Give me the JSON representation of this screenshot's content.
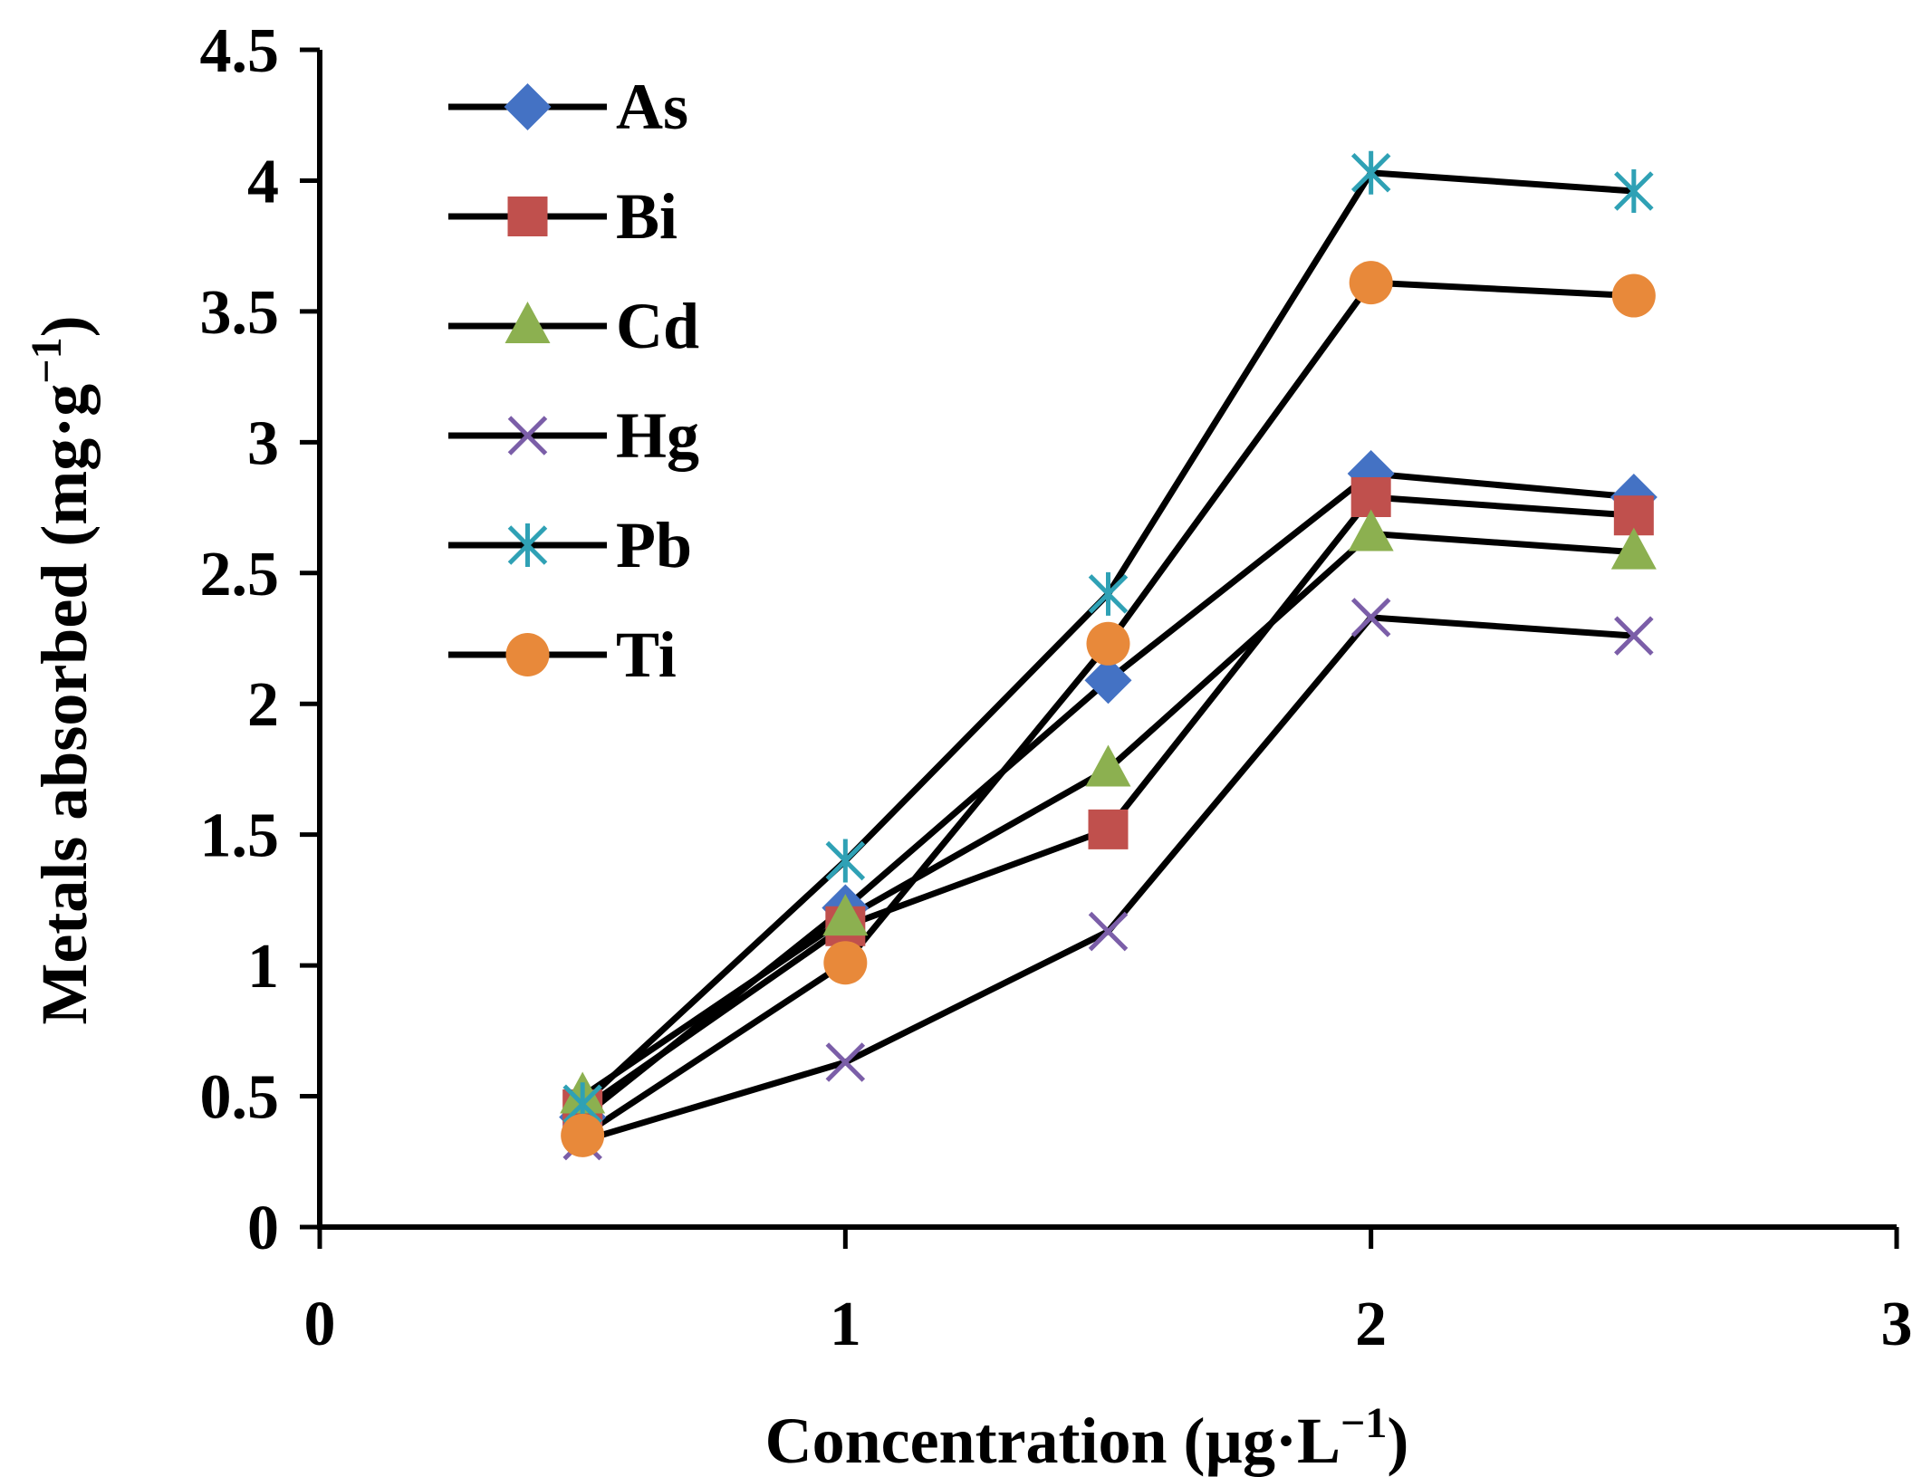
{
  "chart_data": {
    "type": "line",
    "title": "",
    "xlabel_main": "Concentration (µg·L",
    "xlabel_sup": "−1",
    "xlabel_end": ")",
    "ylabel_main": "Metals absorbed (mg·g",
    "ylabel_sup": "−1",
    "ylabel_end": ")",
    "xlim": [
      0,
      3
    ],
    "ylim": [
      0,
      4.5
    ],
    "x_ticks": [
      "0",
      "1",
      "2",
      "3"
    ],
    "y_ticks": [
      "0",
      "0.5",
      "1",
      "1.5",
      "2",
      "2.5",
      "3",
      "3.5",
      "4",
      "4.5"
    ],
    "legend_position": "top-left",
    "x": [
      0.5,
      1,
      1.5,
      2,
      2.5
    ],
    "series": [
      {
        "name": "As",
        "marker": "diamond",
        "color": "#4472C4",
        "values": [
          0.42,
          1.22,
          2.09,
          2.88,
          2.79
        ]
      },
      {
        "name": "Bi",
        "marker": "square",
        "color": "#C0504D",
        "values": [
          0.45,
          1.15,
          1.52,
          2.79,
          2.72
        ]
      },
      {
        "name": "Cd",
        "marker": "triangle",
        "color": "#8CB050",
        "values": [
          0.5,
          1.18,
          1.75,
          2.65,
          2.58
        ]
      },
      {
        "name": "Hg",
        "marker": "x",
        "color": "#7B5EA8",
        "values": [
          0.33,
          0.63,
          1.13,
          2.33,
          2.26
        ]
      },
      {
        "name": "Pb",
        "marker": "star",
        "color": "#2FA1B5",
        "values": [
          0.47,
          1.4,
          2.42,
          4.03,
          3.96
        ]
      },
      {
        "name": "Ti",
        "marker": "circle",
        "color": "#E8893A",
        "values": [
          0.35,
          1.01,
          2.23,
          3.61,
          3.56
        ]
      }
    ]
  }
}
